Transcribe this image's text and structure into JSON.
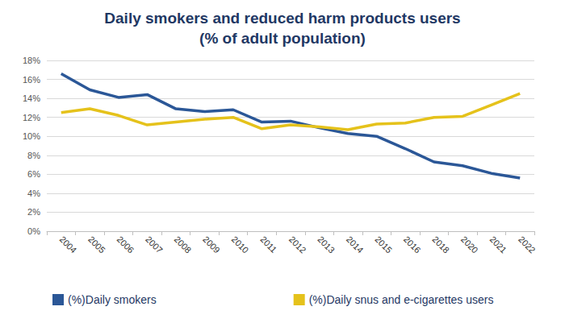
{
  "chart_data": {
    "type": "line",
    "title": "Daily smokers and reduced harm products users",
    "subtitle": "(% of adult population)",
    "categories": [
      "2004",
      "2005",
      "2006",
      "2007",
      "2008",
      "2009",
      "2010",
      "2011",
      "2012",
      "2013",
      "2014",
      "2015",
      "2016",
      "2018",
      "2020",
      "2021",
      "2022"
    ],
    "series": [
      {
        "name": "(%)Daily smokers",
        "color": "#2b5797",
        "values": [
          16.6,
          14.9,
          14.1,
          14.4,
          12.9,
          12.6,
          12.8,
          11.5,
          11.6,
          10.9,
          10.3,
          10.0,
          8.7,
          7.3,
          6.9,
          6.1,
          5.6
        ]
      },
      {
        "name": "(%)Daily snus and e-cigarettes users",
        "color": "#e5c21b",
        "values": [
          12.5,
          12.9,
          12.2,
          11.2,
          11.5,
          11.8,
          12.0,
          10.8,
          11.2,
          11.0,
          10.7,
          11.3,
          11.4,
          12.0,
          12.1,
          13.3,
          14.5
        ]
      }
    ],
    "ylim": [
      0,
      18
    ],
    "yticks": [
      {
        "value": 0,
        "label": "0%"
      },
      {
        "value": 2,
        "label": "2%"
      },
      {
        "value": 4,
        "label": "4%"
      },
      {
        "value": 6,
        "label": "6%"
      },
      {
        "value": 8,
        "label": "8%"
      },
      {
        "value": 10,
        "label": "10%"
      },
      {
        "value": 12,
        "label": "12%"
      },
      {
        "value": 14,
        "label": "14%"
      },
      {
        "value": 16,
        "label": "16%"
      },
      {
        "value": 18,
        "label": "18%"
      }
    ],
    "grid": true,
    "legend": "bottom"
  }
}
